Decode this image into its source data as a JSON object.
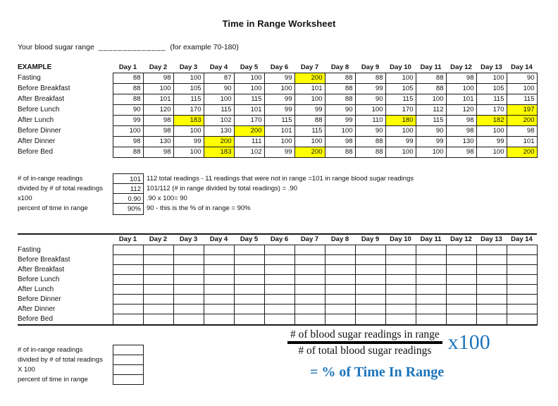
{
  "title": "Time in Range Worksheet",
  "range_line": {
    "prefix": "Your blood sugar range",
    "blank": "______________",
    "suffix": "(for example 70-180)"
  },
  "day_headers": [
    "Day 1",
    "Day 2",
    "Day 3",
    "Day 4",
    "Day 5",
    "Day 6",
    "Day 7",
    "Day 8",
    "Day 9",
    "Day 10",
    "Day 11",
    "Day 12",
    "Day 13",
    "Day 14"
  ],
  "example": {
    "label": "EXAMPLE",
    "rows": [
      {
        "label": "Fasting",
        "values": [
          88,
          98,
          100,
          87,
          100,
          99,
          200,
          88,
          88,
          100,
          88,
          98,
          100,
          90
        ],
        "highlighted": [
          6
        ]
      },
      {
        "label": "Before Breakfast",
        "values": [
          88,
          100,
          105,
          90,
          100,
          100,
          101,
          88,
          99,
          105,
          88,
          100,
          105,
          100
        ],
        "highlighted": []
      },
      {
        "label": "After Breakfast",
        "values": [
          88,
          101,
          115,
          100,
          115,
          99,
          100,
          88,
          90,
          115,
          100,
          101,
          115,
          115
        ],
        "highlighted": []
      },
      {
        "label": "Before Lunch",
        "values": [
          90,
          120,
          170,
          115,
          101,
          99,
          99,
          90,
          100,
          170,
          112,
          120,
          170,
          197
        ],
        "highlighted": [
          13
        ]
      },
      {
        "label": "After Lunch",
        "values": [
          99,
          98,
          183,
          102,
          170,
          115,
          88,
          99,
          110,
          180,
          115,
          98,
          182,
          200
        ],
        "highlighted": [
          2,
          9,
          12,
          13
        ]
      },
      {
        "label": "Before Dinner",
        "values": [
          100,
          98,
          100,
          130,
          200,
          101,
          115,
          100,
          90,
          100,
          90,
          98,
          100,
          98
        ],
        "highlighted": [
          4
        ]
      },
      {
        "label": "After Dinner",
        "values": [
          98,
          130,
          99,
          200,
          111,
          100,
          100,
          98,
          88,
          99,
          99,
          130,
          99,
          101
        ],
        "highlighted": [
          3
        ]
      },
      {
        "label": "Before Bed",
        "values": [
          88,
          98,
          100,
          183,
          102,
          99,
          200,
          88,
          88,
          100,
          100,
          98,
          100,
          200
        ],
        "highlighted": [
          3,
          6,
          13
        ]
      }
    ]
  },
  "example_calc": {
    "rows": [
      {
        "label": "# of in-range readings",
        "value": "101",
        "note": "112  total readings - 11 readings that were not in range =101 in range blood sugar readings"
      },
      {
        "label": "divided by # of total readings",
        "value": "112",
        "note": "101/112 (# in range divided by total readings) = .90"
      },
      {
        "label": "x100",
        "value": "0.90",
        "note": ".90 x 100= 90"
      },
      {
        "label": "percent of time in range",
        "value": "90%",
        "note": "90 - this is the % of in range = 90%"
      }
    ]
  },
  "blank_table": {
    "row_labels": [
      "Fasting",
      "Before Breakfast",
      "After Breakfast",
      "Before Lunch",
      "After Lunch",
      "Before Dinner",
      "After Dinner",
      "Before Bed"
    ]
  },
  "blank_calc": {
    "labels": [
      "# of in-range readings",
      "divided by # of total readings",
      "X 100",
      "percent of time in range"
    ]
  },
  "formula": {
    "numerator": "# of blood sugar readings in range",
    "denominator": "# of total blood sugar readings",
    "multiplier": "x100",
    "result": "= % of Time In Range"
  },
  "colors": {
    "highlight": "#FFFF00",
    "formula_blue": "#1C75BC"
  }
}
